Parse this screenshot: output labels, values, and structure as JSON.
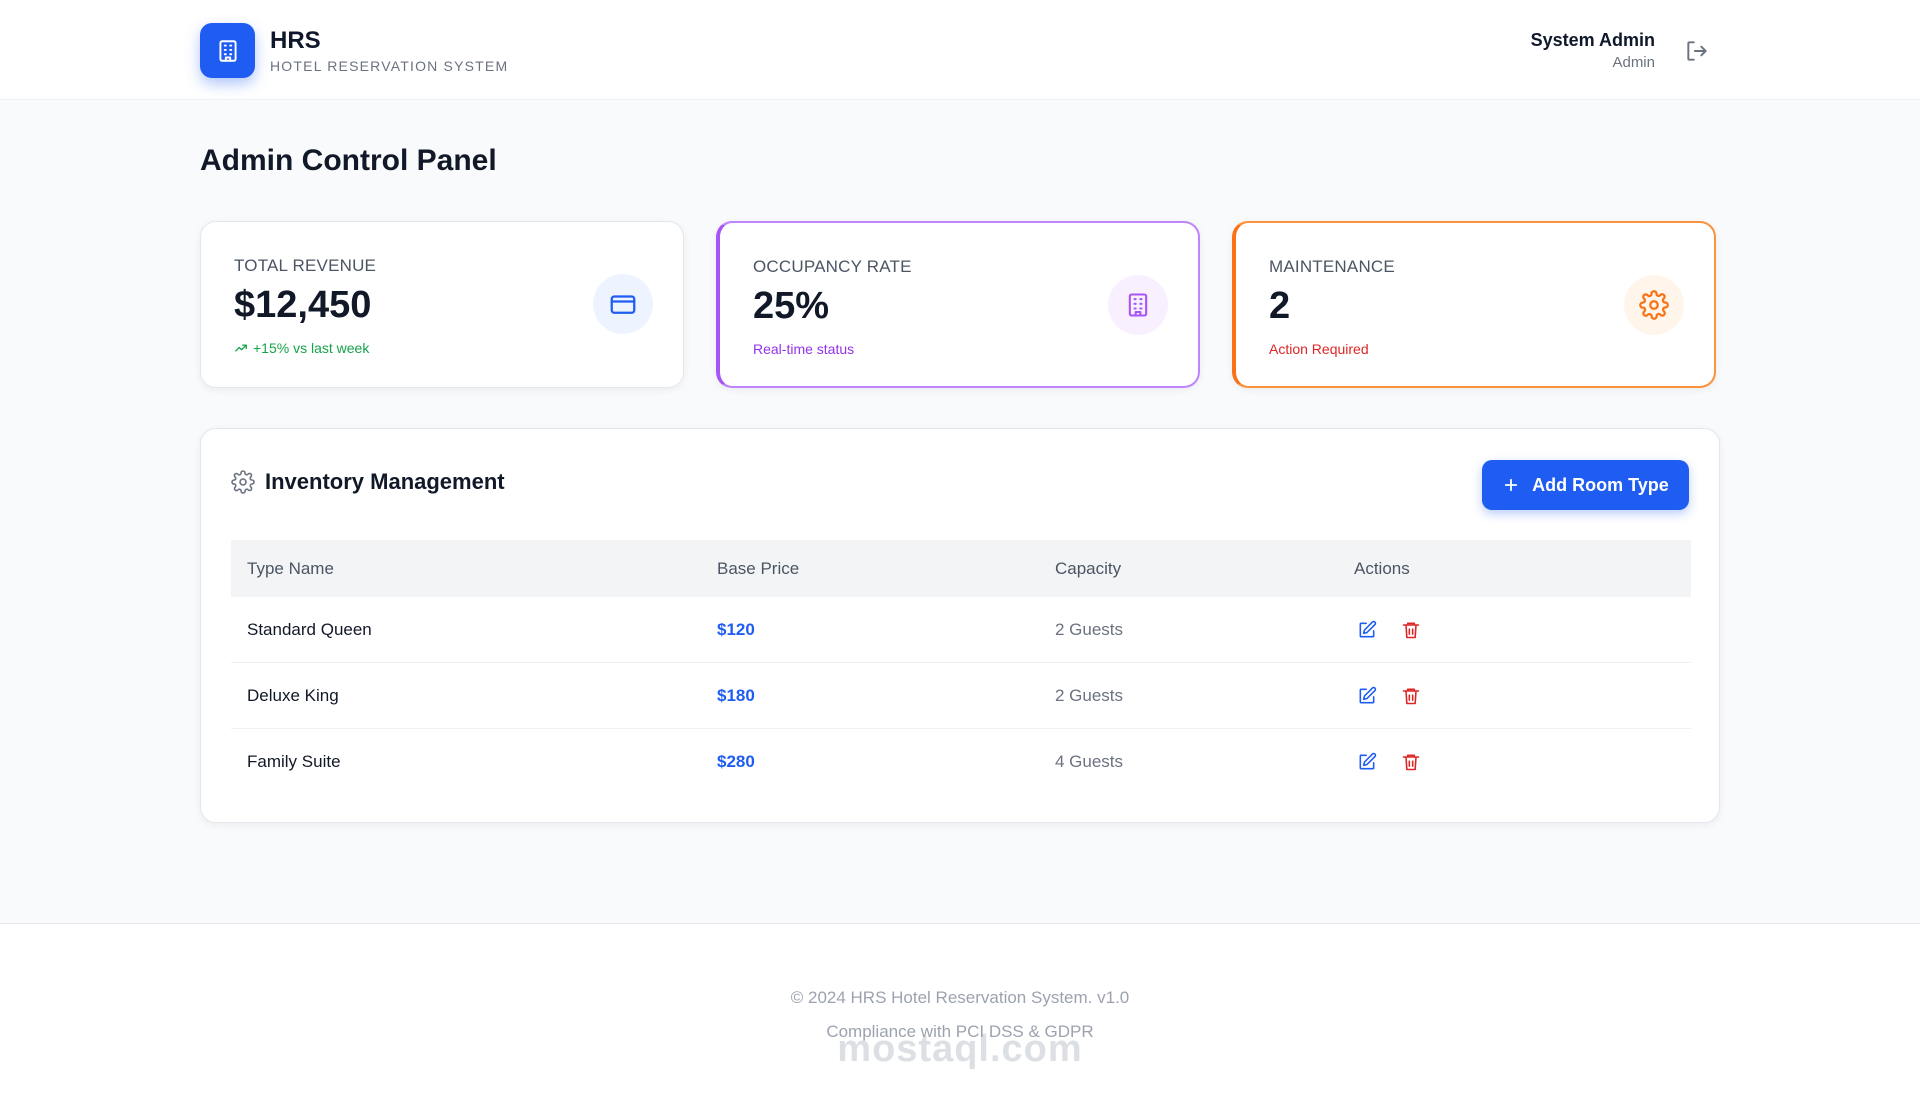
{
  "header": {
    "brand_title": "HRS",
    "brand_subtitle": "HOTEL RESERVATION SYSTEM",
    "logo_icon": "building-icon",
    "user_name": "System Admin",
    "user_role": "Admin",
    "logout_icon": "logout-icon"
  },
  "page": {
    "title": "Admin Control Panel"
  },
  "stats": [
    {
      "label": "TOTAL REVENUE",
      "value": "$12,450",
      "note": "+15% vs last week",
      "note_color": "#16a34a",
      "icon": "credit-card-icon",
      "accent": "#1e5cf2"
    },
    {
      "label": "OCCUPANCY RATE",
      "value": "25%",
      "note": "Real-time status",
      "note_color": "#9333ea",
      "icon": "building-icon",
      "accent": "#a855f7"
    },
    {
      "label": "MAINTENANCE",
      "value": "2",
      "note": "Action Required",
      "note_color": "#dc2626",
      "icon": "gear-icon",
      "accent": "#f97316"
    }
  ],
  "inventory": {
    "title": "Inventory Management",
    "add_button": "Add Room Type",
    "columns": [
      "Type Name",
      "Base Price",
      "Capacity",
      "Actions"
    ],
    "rows": [
      {
        "name": "Standard Queen",
        "price": "$120",
        "capacity": "2 Guests"
      },
      {
        "name": "Deluxe King",
        "price": "$180",
        "capacity": "2 Guests"
      },
      {
        "name": "Family Suite",
        "price": "$280",
        "capacity": "4 Guests"
      }
    ]
  },
  "footer": {
    "line1": "© 2024 HRS Hotel Reservation System. v1.0",
    "line2": "Compliance with PCI DSS & GDPR",
    "watermark": "mostaql.com"
  },
  "colors": {
    "primary": "#1e5cf2",
    "danger": "#dc2626",
    "success": "#16a34a",
    "purple": "#a855f7",
    "orange": "#f97316"
  }
}
